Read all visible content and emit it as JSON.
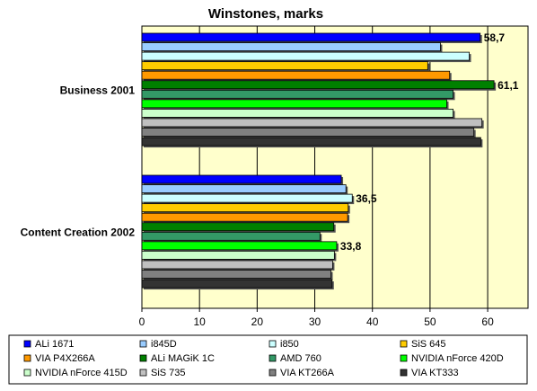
{
  "chart_data": {
    "type": "bar",
    "orientation": "horizontal",
    "title": "Winstones, marks",
    "categories": [
      "Business 2001",
      "Content Creation 2002"
    ],
    "xlim": [
      0,
      67
    ],
    "xticks": [
      "0",
      "10",
      "20",
      "30",
      "40",
      "50",
      "60"
    ],
    "grid": "vertical",
    "legend_placement": "bottom",
    "plot_background": "#ffffcc",
    "series": [
      {
        "name": "ALi 1671",
        "color": "#0000ff",
        "values": [
          58.7,
          34.6
        ]
      },
      {
        "name": "i845D",
        "color": "#99ccff",
        "values": [
          51.8,
          35.4
        ]
      },
      {
        "name": "i850",
        "color": "#ccffff",
        "values": [
          56.8,
          36.5
        ]
      },
      {
        "name": "SiS 645",
        "color": "#ffcc00",
        "values": [
          49.6,
          35.8
        ]
      },
      {
        "name": "VIA P4X266A",
        "color": "#ff9900",
        "values": [
          53.4,
          35.7
        ]
      },
      {
        "name": "ALi MAGiK 1C",
        "color": "#008000",
        "values": [
          61.1,
          33.3
        ]
      },
      {
        "name": "AMD 760",
        "color": "#339966",
        "values": [
          54.0,
          30.9
        ]
      },
      {
        "name": "NVIDIA nForce 420D",
        "color": "#00ff00",
        "values": [
          52.9,
          33.8
        ]
      },
      {
        "name": "NVIDIA nForce 415D",
        "color": "#ccffcc",
        "values": [
          54.0,
          33.4
        ]
      },
      {
        "name": "SiS 735",
        "color": "#c0c0c0",
        "values": [
          59.0,
          33.1
        ]
      },
      {
        "name": "VIA KT266A",
        "color": "#808080",
        "values": [
          57.6,
          32.8
        ]
      },
      {
        "name": "VIA KT333",
        "color": "#333333",
        "values": [
          58.8,
          33.0
        ]
      }
    ],
    "data_labels": [
      {
        "series": 0,
        "category": 0,
        "text": "58,7"
      },
      {
        "series": 5,
        "category": 0,
        "text": "61,1"
      },
      {
        "series": 2,
        "category": 1,
        "text": "36,5"
      },
      {
        "series": 7,
        "category": 1,
        "text": "33,8"
      }
    ]
  }
}
